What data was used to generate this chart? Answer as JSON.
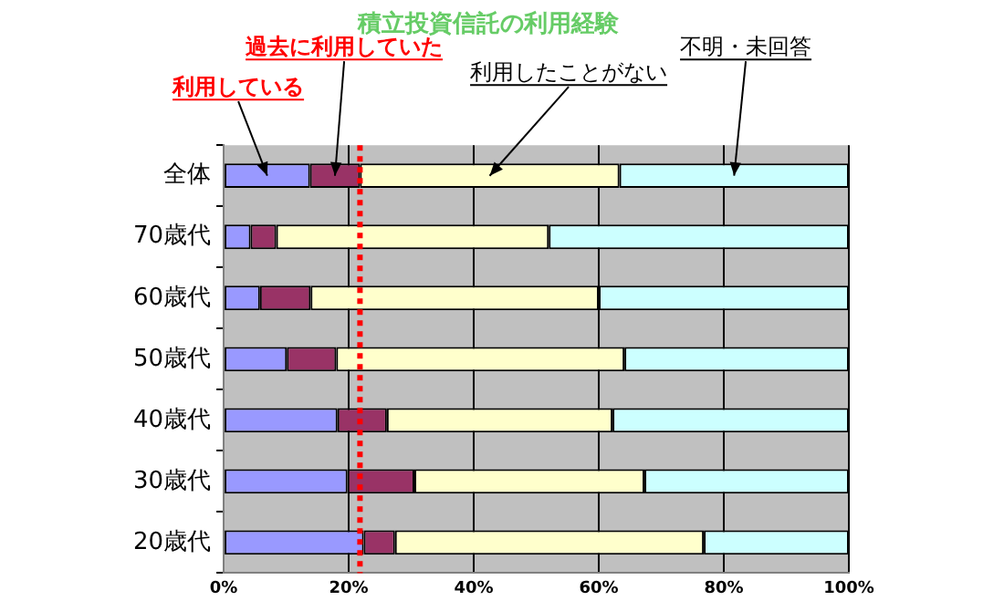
{
  "chart_data": {
    "type": "bar",
    "orientation": "horizontal",
    "stacked": true,
    "title": "積立投資信託の利用経験",
    "categories": [
      "全体",
      "70歳代",
      "60歳代",
      "50歳代",
      "40歳代",
      "30歳代",
      "20歳代"
    ],
    "series": [
      {
        "name": "利用している",
        "color": "#9999ff",
        "values": [
          13.8,
          4.3,
          5.8,
          10.1,
          18.2,
          19.8,
          22.4
        ]
      },
      {
        "name": "過去に利用していた",
        "color": "#993366",
        "values": [
          8.0,
          4.1,
          8.1,
          7.9,
          7.9,
          10.7,
          5.0
        ]
      },
      {
        "name": "利用したことがない",
        "color": "#ffffcc",
        "values": [
          41.5,
          43.6,
          46.1,
          46.1,
          36.1,
          36.8,
          49.4
        ]
      },
      {
        "name": "不明・未回答",
        "color": "#ccffff",
        "values": [
          36.7,
          48.0,
          40.0,
          35.9,
          37.8,
          32.7,
          23.2
        ]
      }
    ],
    "xlim": [
      0,
      100
    ],
    "xticks": [
      {
        "value": 0,
        "label": "0%"
      },
      {
        "value": 20,
        "label": "20%"
      },
      {
        "value": 40,
        "label": "40%"
      },
      {
        "value": 60,
        "label": "60%"
      },
      {
        "value": 80,
        "label": "80%"
      },
      {
        "value": 100,
        "label": "100%"
      }
    ],
    "ref_lines": [
      {
        "axis": "x",
        "value": 21.8,
        "color": "#ff0000",
        "line_style": "dotted"
      }
    ],
    "grid": "x",
    "legend": false
  }
}
